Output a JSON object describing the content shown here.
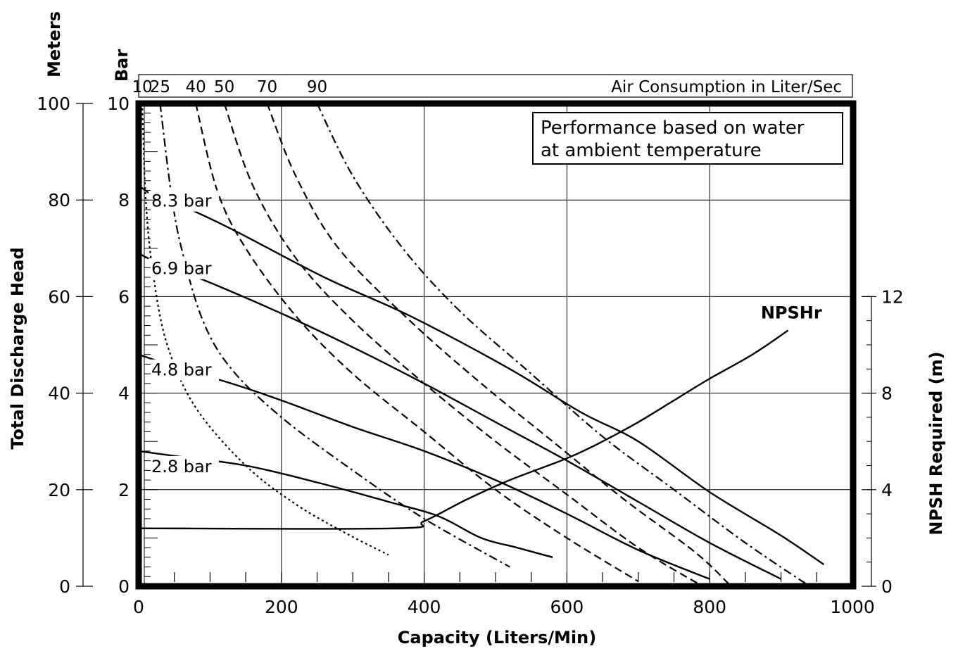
{
  "chart_data": {
    "type": "line",
    "xlabel": "Capacity (Liters/Min)",
    "ylabel_left": "Total Discharge Head",
    "left_unit_meters": "Meters",
    "left_unit_bar": "Bar",
    "ylabel_right": "NPSH Required (m)",
    "air_title": "Air Consumption in Liter/Sec",
    "note_lines": [
      "Performance based on water",
      "at ambient temperature"
    ],
    "xlim": [
      0,
      1000
    ],
    "ylim_m": [
      0,
      100
    ],
    "ylim_bar": [
      0,
      10
    ],
    "ylim_npsh": [
      0,
      20
    ],
    "x_ticks": [
      "0",
      "200",
      "400",
      "600",
      "800",
      "1000"
    ],
    "y_ticks_m": [
      "0",
      "20",
      "40",
      "60",
      "80",
      "100"
    ],
    "y_ticks_bar": [
      "0",
      "2",
      "4",
      "6",
      "8",
      "10"
    ],
    "y_ticks_npsh": [
      "0",
      "4",
      "8",
      "12"
    ],
    "y_ticks_npsh_values": [
      0,
      4,
      8,
      12
    ],
    "grid": true,
    "pressure_curves": [
      {
        "name": "8.3 bar",
        "points": [
          [
            0,
            83
          ],
          [
            20,
            81
          ],
          [
            50,
            79.5
          ],
          [
            130,
            74
          ],
          [
            260,
            64
          ],
          [
            380,
            56
          ],
          [
            520,
            45
          ],
          [
            620,
            36
          ],
          [
            700,
            30
          ],
          [
            800,
            19.5
          ],
          [
            900,
            10.5
          ],
          [
            960,
            4.5
          ]
        ]
      },
      {
        "name": "6.9 bar",
        "points": [
          [
            0,
            69
          ],
          [
            20,
            67.5
          ],
          [
            90,
            63.5
          ],
          [
            200,
            56.5
          ],
          [
            300,
            49.5
          ],
          [
            400,
            42
          ],
          [
            500,
            34
          ],
          [
            600,
            26
          ],
          [
            700,
            17.5
          ],
          [
            800,
            9
          ],
          [
            900,
            1.5
          ]
        ]
      },
      {
        "name": "4.8 bar",
        "points": [
          [
            0,
            48
          ],
          [
            20,
            47
          ],
          [
            60,
            45
          ],
          [
            130,
            42
          ],
          [
            200,
            38.5
          ],
          [
            300,
            33
          ],
          [
            400,
            28
          ],
          [
            500,
            22
          ],
          [
            600,
            15
          ],
          [
            700,
            7.5
          ],
          [
            800,
            1.5
          ]
        ]
      },
      {
        "name": "2.8 bar",
        "points": [
          [
            0,
            28
          ],
          [
            50,
            27
          ],
          [
            150,
            25
          ],
          [
            250,
            21.5
          ],
          [
            350,
            17.5
          ],
          [
            420,
            14.5
          ],
          [
            480,
            10
          ],
          [
            530,
            8
          ],
          [
            580,
            6
          ]
        ]
      }
    ],
    "air_curves": [
      {
        "name": "10",
        "style": "dotted",
        "points": [
          [
            5,
            100
          ],
          [
            10,
            80
          ],
          [
            20,
            65
          ],
          [
            40,
            50
          ],
          [
            80,
            37
          ],
          [
            150,
            25
          ],
          [
            220,
            17
          ],
          [
            290,
            11
          ],
          [
            350,
            6.5
          ]
        ]
      },
      {
        "name": "25",
        "style": "dashdot",
        "points": [
          [
            30,
            100
          ],
          [
            45,
            82
          ],
          [
            60,
            70
          ],
          [
            90,
            55
          ],
          [
            130,
            45
          ],
          [
            200,
            35
          ],
          [
            300,
            24
          ],
          [
            400,
            14
          ],
          [
            520,
            4
          ]
        ]
      },
      {
        "name": "40",
        "style": "dashed",
        "points": [
          [
            80,
            100
          ],
          [
            110,
            82
          ],
          [
            150,
            70
          ],
          [
            220,
            56
          ],
          [
            300,
            44
          ],
          [
            400,
            32
          ],
          [
            500,
            20
          ],
          [
            600,
            10
          ],
          [
            700,
            1
          ]
        ]
      },
      {
        "name": "50",
        "style": "dashed",
        "points": [
          [
            120,
            100
          ],
          [
            160,
            83
          ],
          [
            220,
            68
          ],
          [
            300,
            55
          ],
          [
            400,
            42
          ],
          [
            500,
            30
          ],
          [
            600,
            19
          ],
          [
            700,
            8
          ],
          [
            790,
            0
          ]
        ]
      },
      {
        "name": "70",
        "style": "dashed",
        "points": [
          [
            180,
            100
          ],
          [
            220,
            85
          ],
          [
            280,
            70
          ],
          [
            380,
            55
          ],
          [
            480,
            42
          ],
          [
            580,
            30
          ],
          [
            680,
            18
          ],
          [
            780,
            7
          ],
          [
            830,
            0
          ]
        ]
      },
      {
        "name": "90",
        "style": "dashdot",
        "points": [
          [
            250,
            100
          ],
          [
            300,
            85
          ],
          [
            370,
            70
          ],
          [
            450,
            57
          ],
          [
            550,
            44
          ],
          [
            650,
            31
          ],
          [
            750,
            20
          ],
          [
            850,
            9
          ],
          [
            940,
            0
          ]
        ]
      }
    ],
    "npsh_curve": {
      "name": "NPSHr",
      "points": [
        [
          0,
          2.4
        ],
        [
          360,
          2.4
        ],
        [
          400,
          2.7
        ],
        [
          460,
          3.6
        ],
        [
          520,
          4.4
        ],
        [
          600,
          5.3
        ],
        [
          650,
          6.0
        ],
        [
          700,
          6.8
        ],
        [
          750,
          7.7
        ],
        [
          800,
          8.6
        ],
        [
          860,
          9.6
        ],
        [
          910,
          10.6
        ]
      ]
    }
  }
}
